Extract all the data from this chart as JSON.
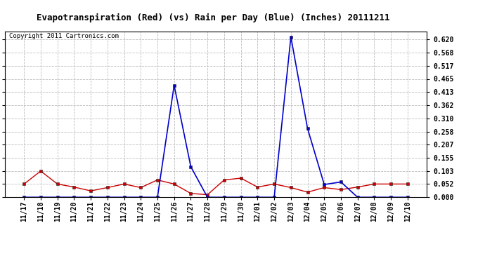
{
  "title": "Evapotranspiration (Red) (vs) Rain per Day (Blue) (Inches) 20111211",
  "copyright": "Copyright 2011 Cartronics.com",
  "dates": [
    "11/17",
    "11/18",
    "11/19",
    "11/20",
    "11/21",
    "11/22",
    "11/23",
    "11/24",
    "11/25",
    "11/26",
    "11/27",
    "11/28",
    "11/29",
    "11/30",
    "12/01",
    "12/02",
    "12/03",
    "12/04",
    "12/05",
    "12/06",
    "12/07",
    "12/08",
    "12/09",
    "12/10"
  ],
  "red_values": [
    0.052,
    0.103,
    0.052,
    0.04,
    0.025,
    0.038,
    0.052,
    0.038,
    0.068,
    0.052,
    0.015,
    0.01,
    0.068,
    0.075,
    0.04,
    0.052,
    0.038,
    0.02,
    0.038,
    0.03,
    0.04,
    0.052,
    0.052,
    0.052
  ],
  "blue_values": [
    0.0,
    0.0,
    0.0,
    0.0,
    0.0,
    0.0,
    0.0,
    0.0,
    0.0,
    0.44,
    0.12,
    0.0,
    0.0,
    0.0,
    0.0,
    0.0,
    0.63,
    0.27,
    0.05,
    0.06,
    0.0,
    0.0,
    0.0,
    0.0
  ],
  "ylim": [
    0.0,
    0.651
  ],
  "yticks": [
    0.0,
    0.052,
    0.103,
    0.155,
    0.207,
    0.258,
    0.31,
    0.362,
    0.413,
    0.465,
    0.517,
    0.568,
    0.62
  ],
  "red_color": "#cc0000",
  "blue_color": "#0000cc",
  "bg_color": "#ffffff",
  "grid_color": "#bbbbbb",
  "title_fontsize": 9,
  "copyright_fontsize": 6.5,
  "tick_fontsize": 7
}
